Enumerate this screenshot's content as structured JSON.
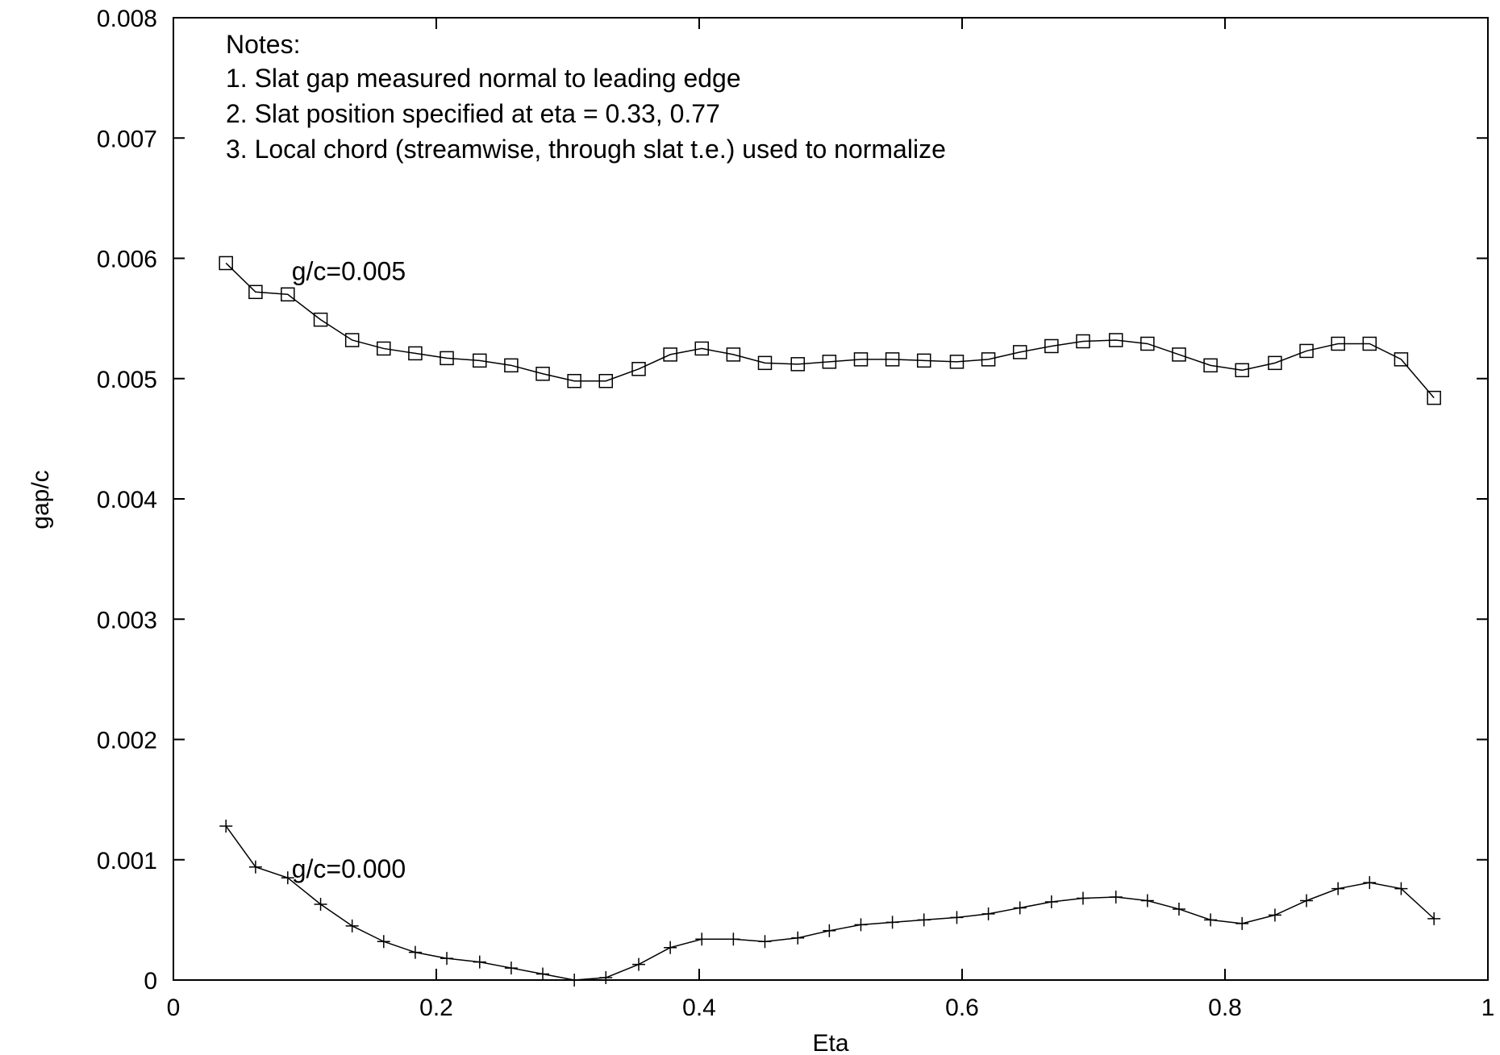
{
  "chart_data": {
    "type": "line",
    "title": "",
    "xlabel": "Eta",
    "ylabel": "gap/c",
    "xlim": [
      0,
      1
    ],
    "ylim": [
      0,
      0.008
    ],
    "grid": false,
    "x_ticks": [
      "0",
      "0.2",
      "0.4",
      "0.6",
      "0.8",
      "1"
    ],
    "x_tick_values": [
      0,
      0.2,
      0.4,
      0.6,
      0.8,
      1
    ],
    "y_ticks": [
      "0",
      "0.001",
      "0.002",
      "0.003",
      "0.004",
      "0.005",
      "0.006",
      "0.007",
      "0.008"
    ],
    "y_tick_values": [
      0,
      0.001,
      0.002,
      0.003,
      0.004,
      0.005,
      0.006,
      0.007,
      0.008
    ],
    "notes": [
      "Notes:",
      "1. Slat gap measured normal to leading edge",
      "2. Slat position specified at eta = 0.33, 0.77",
      "3. Local chord (streamwise, through slat t.e.) used to normalize"
    ],
    "series": [
      {
        "label": "g/c=0.005",
        "label_at": [
          0.09,
          0.0059
        ],
        "marker": "square",
        "x": [
          0.04,
          0.0625,
          0.087,
          0.112,
          0.136,
          0.16,
          0.184,
          0.208,
          0.233,
          0.257,
          0.281,
          0.305,
          0.329,
          0.354,
          0.378,
          0.402,
          0.426,
          0.45,
          0.475,
          0.499,
          0.523,
          0.547,
          0.571,
          0.596,
          0.62,
          0.644,
          0.668,
          0.692,
          0.717,
          0.741,
          0.765,
          0.789,
          0.813,
          0.838,
          0.862,
          0.886,
          0.91,
          0.934,
          0.959
        ],
        "y": [
          0.00596,
          0.00572,
          0.0057,
          0.00549,
          0.00532,
          0.00525,
          0.00521,
          0.00517,
          0.00515,
          0.00511,
          0.00504,
          0.00498,
          0.00498,
          0.00508,
          0.0052,
          0.00525,
          0.0052,
          0.00513,
          0.00512,
          0.00514,
          0.00516,
          0.00516,
          0.00515,
          0.00514,
          0.00516,
          0.00522,
          0.00527,
          0.00531,
          0.00532,
          0.00529,
          0.0052,
          0.00511,
          0.00507,
          0.00513,
          0.00523,
          0.00529,
          0.00529,
          0.00516,
          0.00484
        ]
      },
      {
        "label": "g/c=0.000",
        "label_at": [
          0.09,
          0.00093
        ],
        "marker": "plus",
        "x": [
          0.04,
          0.0625,
          0.087,
          0.112,
          0.136,
          0.16,
          0.184,
          0.208,
          0.233,
          0.257,
          0.281,
          0.305,
          0.329,
          0.354,
          0.378,
          0.402,
          0.426,
          0.45,
          0.475,
          0.499,
          0.523,
          0.547,
          0.571,
          0.596,
          0.62,
          0.644,
          0.668,
          0.692,
          0.717,
          0.741,
          0.765,
          0.789,
          0.813,
          0.838,
          0.862,
          0.886,
          0.91,
          0.934,
          0.959
        ],
        "y": [
          0.00128,
          0.00094,
          0.00085,
          0.00063,
          0.00045,
          0.00032,
          0.00023,
          0.00018,
          0.00015,
          0.0001,
          5e-05,
          0.0,
          2e-05,
          0.00013,
          0.00027,
          0.00034,
          0.00034,
          0.00032,
          0.00035,
          0.00041,
          0.00046,
          0.00048,
          0.0005,
          0.00052,
          0.00055,
          0.0006,
          0.00065,
          0.00068,
          0.00069,
          0.00066,
          0.00059,
          0.0005,
          0.00047,
          0.00054,
          0.00066,
          0.00076,
          0.00081,
          0.00076,
          0.00051
        ]
      }
    ]
  }
}
